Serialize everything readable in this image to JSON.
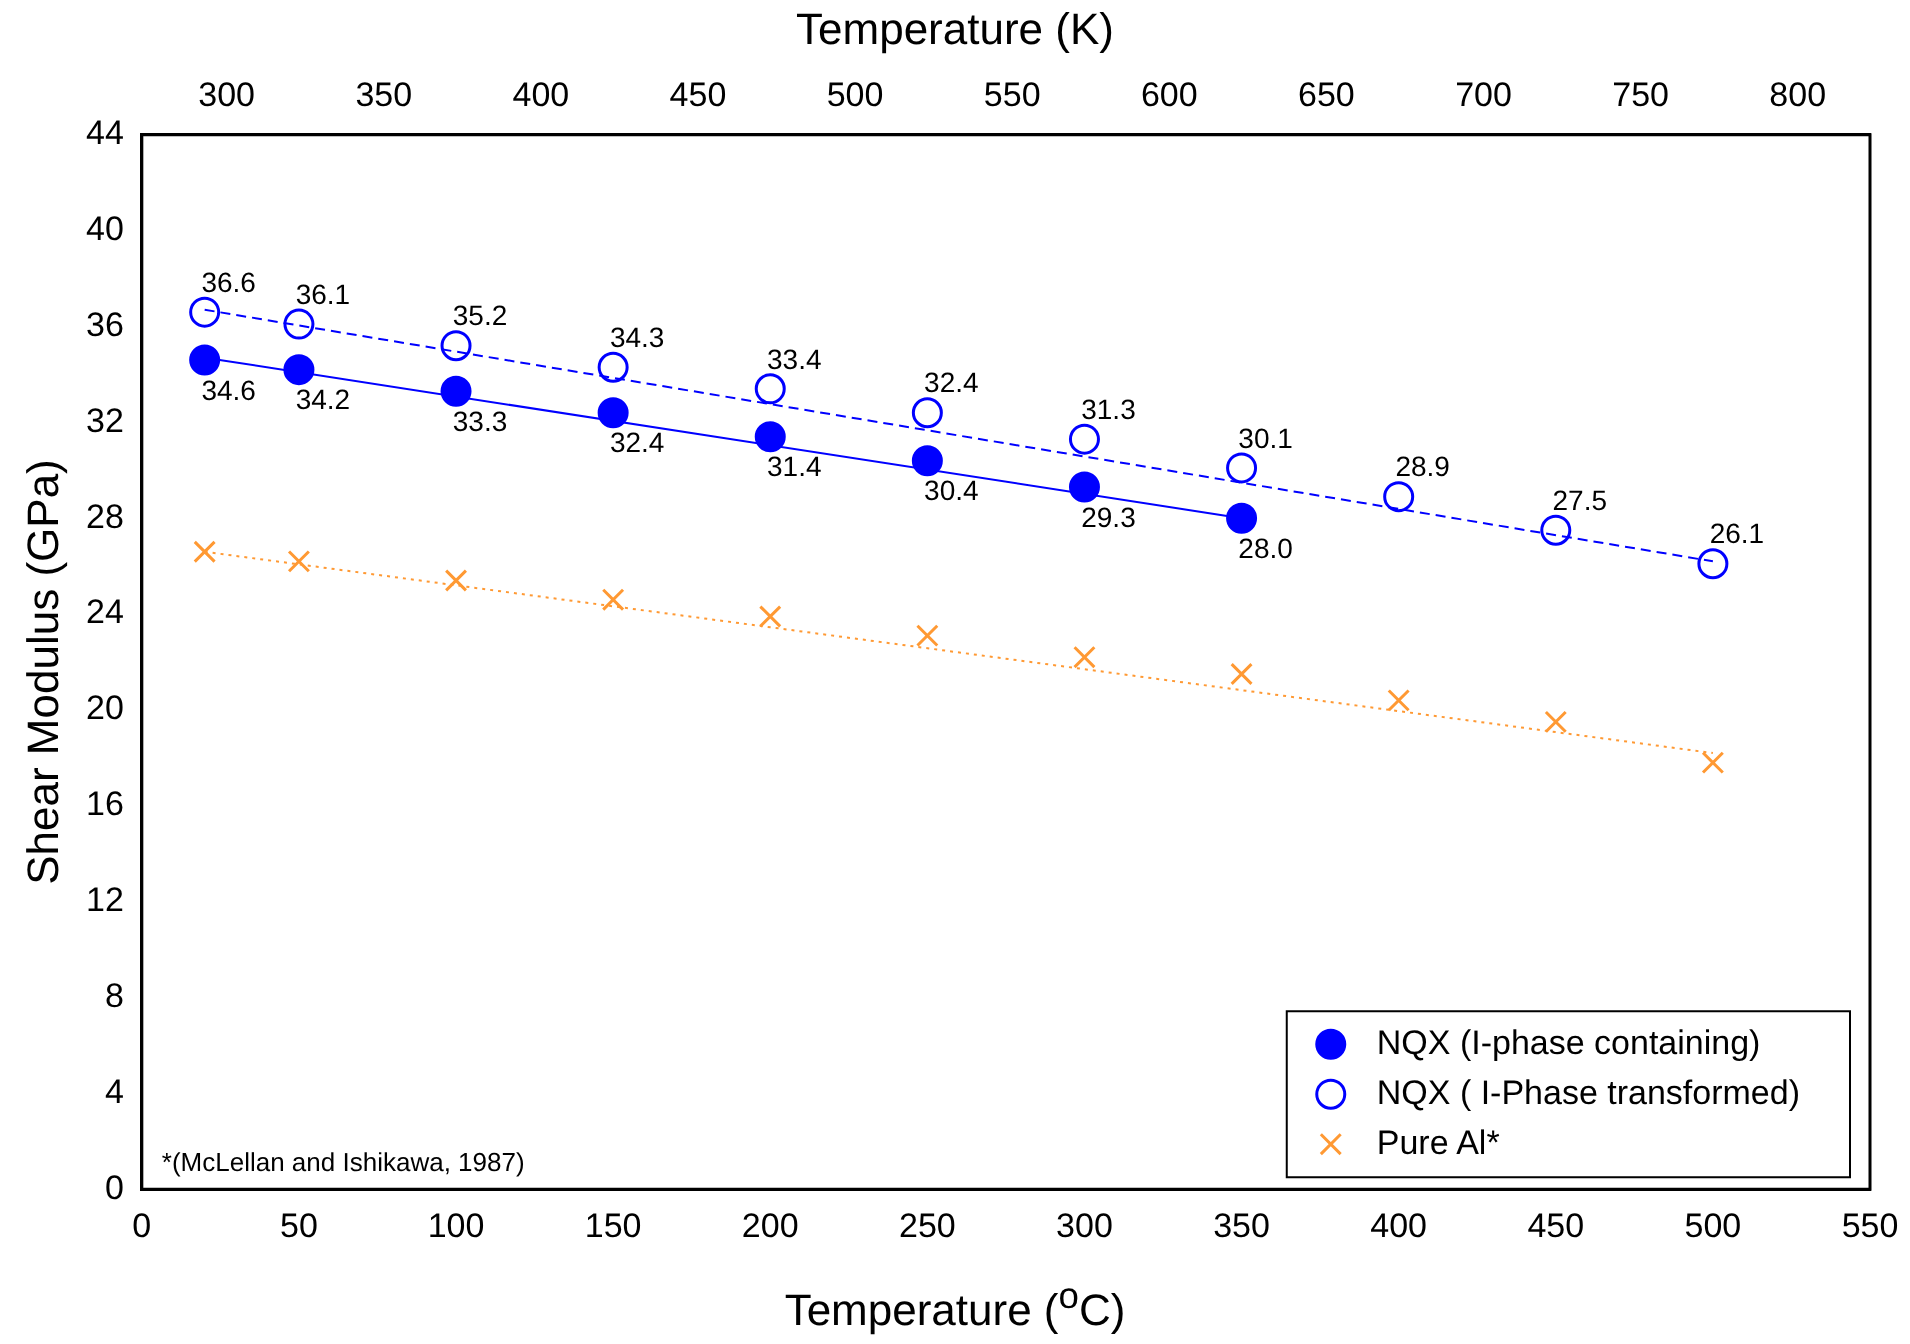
{
  "chart_data": {
    "type": "scatter",
    "xlabel": "Temperature ($^{o}$C)",
    "ylabel": "Shear Modulus (GPa)",
    "x2label": "Temperature (K)",
    "xlim": [
      0,
      550
    ],
    "xticks": [
      0,
      50,
      100,
      150,
      200,
      250,
      300,
      350,
      400,
      450,
      500,
      550
    ],
    "x2lim": [
      273,
      823
    ],
    "x2ticks": [
      300,
      350,
      400,
      450,
      500,
      550,
      600,
      650,
      700,
      750,
      800
    ],
    "ylim": [
      0,
      44
    ],
    "yticks": [
      0,
      4,
      8,
      12,
      16,
      20,
      24,
      28,
      32,
      36,
      40,
      44
    ],
    "grid": false,
    "legend": "bottom right",
    "annotations": [
      "*(McLellan and Ishikawa, 1987)"
    ],
    "series": [
      {
        "name": "NQX (I-phase containing)",
        "marker": "circle",
        "color": "#0000ff",
        "x": [
          20,
          50,
          100,
          150,
          200,
          250,
          300,
          350
        ],
        "values": [
          34.6,
          34.2,
          33.3,
          32.4,
          31.4,
          30.4,
          29.3,
          28.0
        ],
        "value_labels": [
          "34.6",
          "34.2",
          "33.3",
          "32.4",
          "31.4",
          "30.4",
          "29.3",
          "28.0"
        ]
      },
      {
        "name": "NQX ( I-Phase transformed)",
        "marker": "circle",
        "color": "#0000ff",
        "x": [
          20,
          50,
          100,
          150,
          200,
          250,
          300,
          350,
          400,
          450,
          500
        ],
        "values": [
          36.6,
          36.1,
          35.2,
          34.3,
          33.4,
          32.4,
          31.3,
          30.1,
          28.9,
          27.5,
          26.1
        ],
        "value_labels": [
          "36.6",
          "36.1",
          "35.2",
          "34.3",
          "33.4",
          "32.4",
          "31.3",
          "30.1",
          "28.9",
          "27.5",
          "26.1"
        ]
      },
      {
        "name": "Pure Al*",
        "marker": "cross",
        "color": "#ff9933",
        "x": [
          20,
          50,
          100,
          150,
          200,
          250,
          300,
          350,
          400,
          450,
          500
        ],
        "values": [
          26.6,
          26.2,
          25.4,
          24.6,
          23.9,
          23.1,
          22.2,
          21.5,
          20.4,
          19.5,
          17.8
        ]
      },
      {
        "type": "line",
        "marker": "none",
        "line_style": "solid",
        "color": "#0000ff",
        "x": [
          20,
          350
        ],
        "values": [
          34.7,
          28.0
        ]
      },
      {
        "type": "line",
        "marker": "none",
        "line_style": "dashed",
        "color": "#0000ff",
        "x": [
          20,
          500
        ],
        "values": [
          36.7,
          26.2
        ]
      },
      {
        "type": "line",
        "marker": "none",
        "line_style": "dotted",
        "color": "#ff9933",
        "x": [
          20,
          500
        ],
        "values": [
          26.6,
          18.2
        ]
      }
    ]
  }
}
